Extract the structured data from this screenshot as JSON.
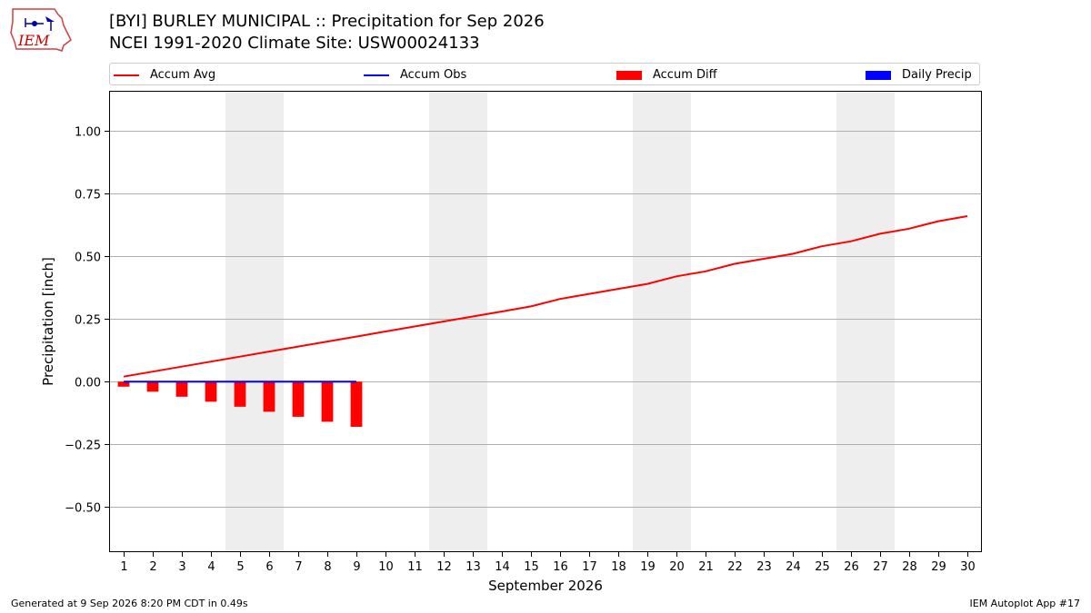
{
  "header": {
    "title_line1": "[BYI] BURLEY MUNICIPAL :: Precipitation for Sep 2026",
    "title_line2": "NCEI 1991-2020 Climate Site: USW00024133",
    "logo_text": "IEM"
  },
  "footer": {
    "generated": "Generated at 9 Sep 2026 8:20 PM CDT in 0.49s",
    "app": "IEM Autoplot App #17"
  },
  "colors": {
    "accum_avg": "#ff0000",
    "accum_obs": "#0000ff",
    "accum_diff": "#ff0000",
    "daily_precip": "#0000ff",
    "weekend_shade": "#eeeeee",
    "grid": "#b0b0b0"
  },
  "chart_data": {
    "type": "line",
    "xlabel": "September 2026",
    "ylabel": "Precipitation [inch]",
    "xlim": [
      0.5,
      30.5
    ],
    "ylim": [
      -0.68,
      1.16
    ],
    "yticks": [
      -0.5,
      -0.25,
      0.0,
      0.25,
      0.5,
      0.75,
      1.0
    ],
    "ytick_labels": [
      "−0.50",
      "−0.25",
      "0.00",
      "0.25",
      "0.50",
      "0.75",
      "1.00"
    ],
    "x": [
      1,
      2,
      3,
      4,
      5,
      6,
      7,
      8,
      9,
      10,
      11,
      12,
      13,
      14,
      15,
      16,
      17,
      18,
      19,
      20,
      21,
      22,
      23,
      24,
      25,
      26,
      27,
      28,
      29,
      30
    ],
    "xtick_labels": [
      "1",
      "2",
      "3",
      "4",
      "5",
      "6",
      "7",
      "8",
      "9",
      "10",
      "11",
      "12",
      "13",
      "14",
      "15",
      "16",
      "17",
      "18",
      "19",
      "20",
      "21",
      "22",
      "23",
      "24",
      "25",
      "26",
      "27",
      "28",
      "29",
      "30"
    ],
    "grid": "horizontal",
    "legend_position": "top",
    "weekend_shading": [
      [
        5,
        6
      ],
      [
        12,
        13
      ],
      [
        19,
        20
      ],
      [
        26,
        27
      ]
    ],
    "legend": [
      {
        "name": "Accum Avg",
        "kind": "line",
        "color": "#ff0000"
      },
      {
        "name": "Accum Obs",
        "kind": "line",
        "color": "#0000ff"
      },
      {
        "name": "Accum Diff",
        "kind": "bar",
        "color": "#ff0000"
      },
      {
        "name": "Daily Precip",
        "kind": "bar",
        "color": "#0000ff"
      }
    ],
    "series": [
      {
        "name": "Accum Avg",
        "type": "line",
        "x": [
          1,
          2,
          3,
          4,
          5,
          6,
          7,
          8,
          9,
          10,
          11,
          12,
          13,
          14,
          15,
          16,
          17,
          18,
          19,
          20,
          21,
          22,
          23,
          24,
          25,
          26,
          27,
          28,
          29,
          30
        ],
        "values": [
          0.02,
          0.04,
          0.06,
          0.08,
          0.1,
          0.12,
          0.14,
          0.16,
          0.18,
          0.2,
          0.22,
          0.24,
          0.26,
          0.28,
          0.3,
          0.33,
          0.35,
          0.37,
          0.39,
          0.42,
          0.44,
          0.47,
          0.49,
          0.51,
          0.54,
          0.56,
          0.59,
          0.61,
          0.64,
          0.66
        ]
      },
      {
        "name": "Accum Obs",
        "type": "line",
        "x": [
          1,
          2,
          3,
          4,
          5,
          6,
          7,
          8,
          9
        ],
        "values": [
          0,
          0,
          0,
          0,
          0,
          0,
          0,
          0,
          0
        ]
      },
      {
        "name": "Accum Diff",
        "type": "bar",
        "x": [
          1,
          2,
          3,
          4,
          5,
          6,
          7,
          8,
          9
        ],
        "values": [
          -0.02,
          -0.04,
          -0.06,
          -0.08,
          -0.1,
          -0.12,
          -0.14,
          -0.16,
          -0.18
        ]
      },
      {
        "name": "Daily Precip",
        "type": "bar",
        "x": [
          1,
          2,
          3,
          4,
          5,
          6,
          7,
          8,
          9
        ],
        "values": [
          0,
          0,
          0,
          0,
          0,
          0,
          0,
          0,
          0
        ]
      }
    ]
  }
}
